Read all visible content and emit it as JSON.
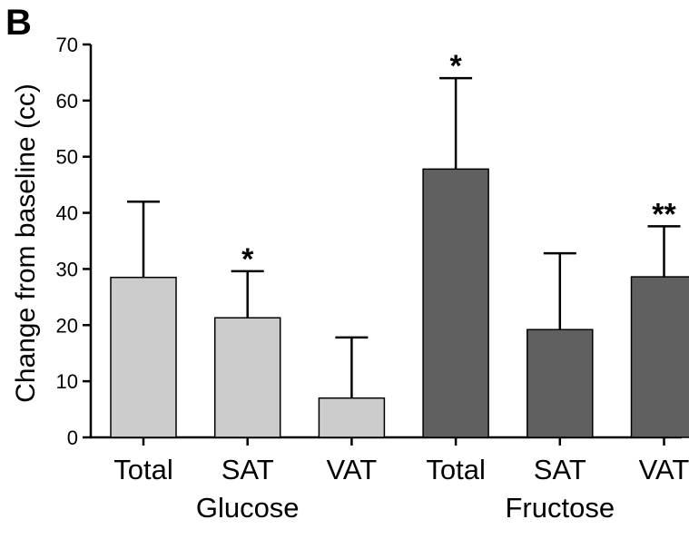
{
  "panel_label": "B",
  "chart_data": {
    "type": "bar",
    "title": "",
    "xlabel": "",
    "ylabel": "Change from baseline (cc)",
    "ylim": [
      0,
      70
    ],
    "yticks": [
      0,
      10,
      20,
      30,
      40,
      50,
      60,
      70
    ],
    "groups": [
      {
        "name": "Glucose",
        "color": "#cccccc",
        "bars": [
          {
            "category": "Total",
            "value": 28.5,
            "error": 13.5,
            "significance": ""
          },
          {
            "category": "SAT",
            "value": 21.3,
            "error": 8.3,
            "significance": "*"
          },
          {
            "category": "VAT",
            "value": 7.0,
            "error": 10.8,
            "significance": ""
          }
        ]
      },
      {
        "name": "Fructose",
        "color": "#606060",
        "bars": [
          {
            "category": "Total",
            "value": 47.8,
            "error": 16.2,
            "significance": "*"
          },
          {
            "category": "SAT",
            "value": 19.2,
            "error": 13.6,
            "significance": ""
          },
          {
            "category": "VAT",
            "value": 28.6,
            "error": 9.0,
            "significance": "**"
          }
        ]
      }
    ]
  }
}
